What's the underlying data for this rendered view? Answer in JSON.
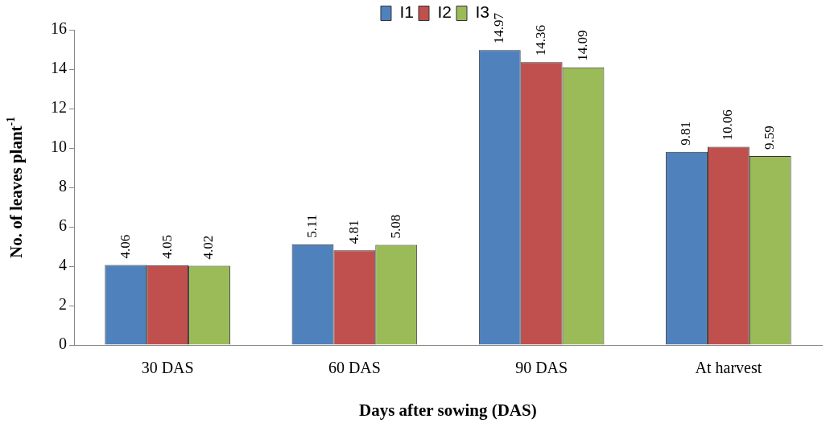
{
  "chart_data": {
    "type": "bar",
    "xlabel": "Days after sowing (DAS)",
    "ylabel": "No. of leaves plant$^{-1}$",
    "categories": [
      "30 DAS",
      "60 DAS",
      "90 DAS",
      "At harvest"
    ],
    "series": [
      {
        "name": "I1",
        "color": "#4f81bd",
        "values": [
          4.06,
          5.11,
          14.97,
          9.81
        ]
      },
      {
        "name": "I2",
        "color": "#c0504d",
        "values": [
          4.05,
          4.81,
          14.36,
          10.06
        ]
      },
      {
        "name": "I3",
        "color": "#9bbb59",
        "values": [
          4.02,
          5.08,
          14.09,
          9.59
        ]
      }
    ],
    "ylim": [
      0,
      16
    ],
    "yticks": [
      0,
      2,
      4,
      6,
      8,
      10,
      12,
      14,
      16
    ],
    "legend": "top",
    "data_labels": true
  }
}
